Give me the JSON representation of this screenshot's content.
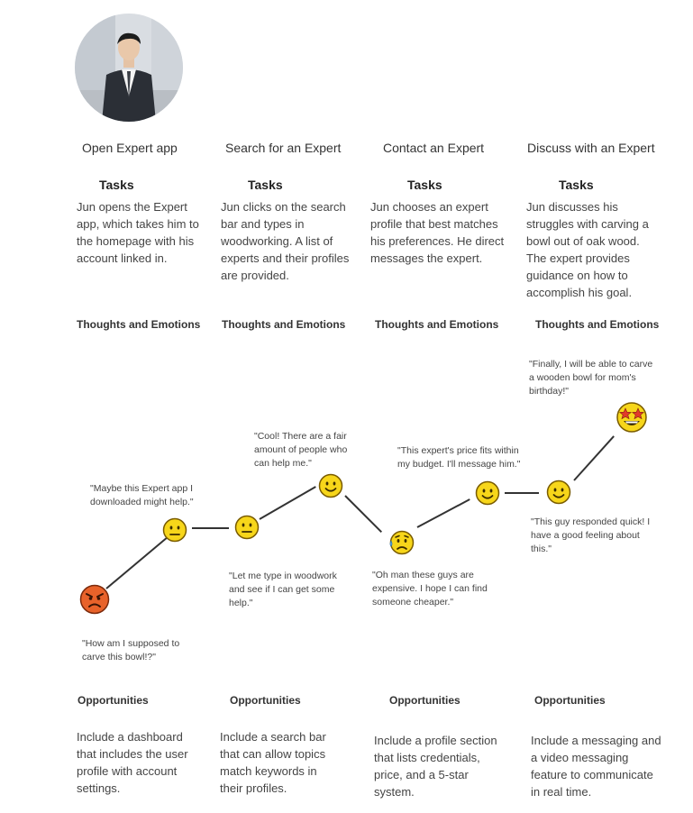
{
  "stages": [
    {
      "title": "Open Expert app",
      "tasks_heading": "Tasks",
      "tasks": "Jun opens the Expert app, which takes him to the homepage with his account linked in.",
      "thoughts_heading": "Thoughts and Emotions",
      "opportunities_heading": "Opportunities",
      "opportunity": "Include a dashboard that includes the user profile with account settings."
    },
    {
      "title": "Search for an Expert",
      "tasks_heading": "Tasks",
      "tasks": "Jun clicks on the search bar and types in woodworking. A list of experts and their profiles are provided.",
      "thoughts_heading": "Thoughts and Emotions",
      "opportunities_heading": "Opportunities",
      "opportunity": "Include a search bar that can allow topics match keywords in their profiles."
    },
    {
      "title": "Contact an Expert",
      "tasks_heading": "Tasks",
      "tasks": "Jun chooses an expert profile that best matches his preferences. He direct messages the expert.",
      "thoughts_heading": "Thoughts and Emotions",
      "opportunities_heading": "Opportunities",
      "opportunity": "Include a profile section that lists credentials, price, and a 5-star system."
    },
    {
      "title": "Discuss with an Expert",
      "tasks_heading": "Tasks",
      "tasks": "Jun discusses his struggles with carving a bowl out of oak wood. The expert provides guidance on how to accomplish his goal.",
      "thoughts_heading": "Thoughts and Emotions",
      "opportunities_heading": "Opportunities",
      "opportunity": "Include a messaging and a video messaging feature to communicate in real time."
    }
  ],
  "emotions": [
    {
      "quote": "\"How am I supposed to carve this bowl!?\"",
      "mood": "angry"
    },
    {
      "quote": "\"Maybe this Expert app I downloaded might help.\"",
      "mood": "neutral"
    },
    {
      "quote": "\"Let me type in woodwork and see if I can get some help.\"",
      "mood": "neutral"
    },
    {
      "quote": "\"Cool! There are a fair amount of people who can help me.\"",
      "mood": "happy"
    },
    {
      "quote": "\"Oh man these guys are expensive. I hope I can find someone cheaper.\"",
      "mood": "worried"
    },
    {
      "quote": "\"This expert's price fits within my budget. I'll message him.\"",
      "mood": "happy"
    },
    {
      "quote": "\"This guy responded quick! I have a good feeling about this.\"",
      "mood": "happy"
    },
    {
      "quote": "\"Finally, I will be able to carve a wooden bowl for mom's birthday!\"",
      "mood": "star-struck"
    }
  ],
  "colors": {
    "emoji_yellow": "#F7D61A",
    "emoji_outline": "#7A5C00",
    "angry_orange": "#E8622A",
    "line": "#333333"
  }
}
